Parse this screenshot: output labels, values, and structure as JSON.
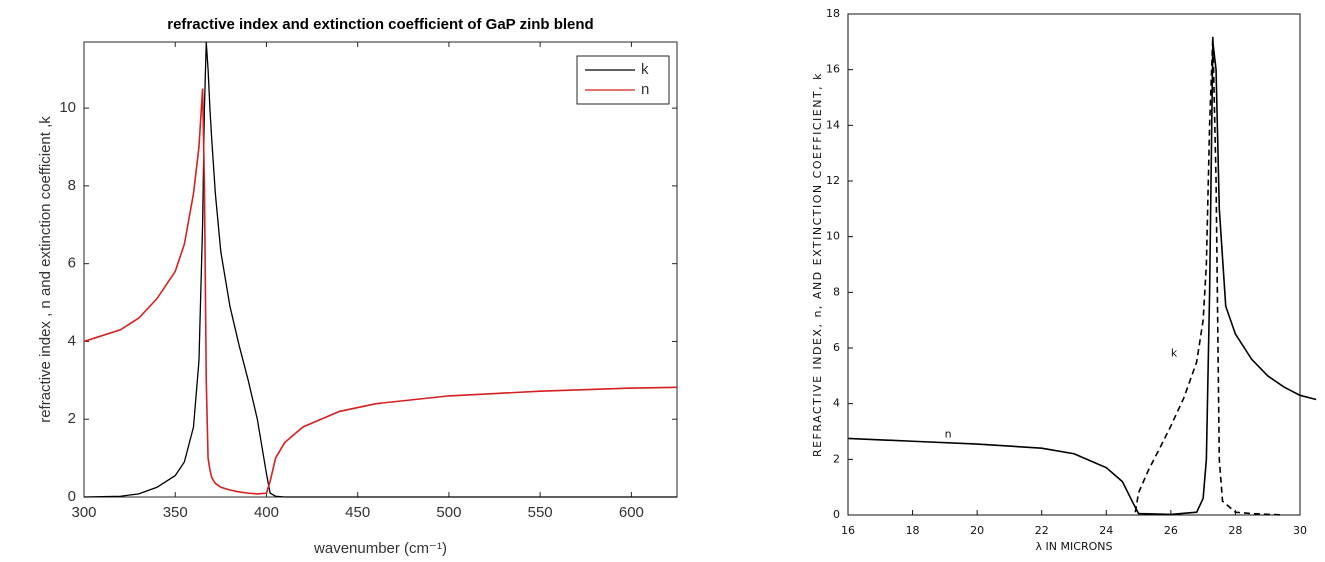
{
  "chart_data": [
    {
      "type": "line",
      "title": "refractive index and extinction coefficient of GaP zinb blend",
      "x_label": "wavenumber (cm⁻¹)",
      "y_label": "refractive index , n and extinction coefficient ,k",
      "xlim": [
        300,
        625
      ],
      "ylim": [
        0,
        11.7
      ],
      "xticks": [
        300,
        350,
        400,
        450,
        500,
        550,
        600
      ],
      "yticks": [
        0,
        2,
        4,
        6,
        8,
        10
      ],
      "legend": "upper right",
      "x": [
        300,
        320,
        330,
        340,
        350,
        355,
        360,
        363,
        365,
        366,
        367,
        368,
        369,
        370,
        372,
        375,
        380,
        385,
        390,
        395,
        400,
        402,
        405,
        410,
        420,
        440,
        460,
        500,
        550,
        600,
        625
      ],
      "series": [
        {
          "name": "k",
          "color": "#000000",
          "dash": "solid",
          "values": [
            0,
            0.02,
            0.08,
            0.25,
            0.55,
            0.9,
            1.8,
            3.5,
            7,
            10,
            11.7,
            11,
            10,
            9.2,
            7.8,
            6.3,
            4.9,
            3.9,
            3.0,
            2.0,
            0.6,
            0.1,
            0.02,
            0,
            0,
            0,
            0,
            0,
            0,
            0,
            0
          ]
        },
        {
          "name": "n",
          "color": "#d42020",
          "dash": "solid",
          "values": [
            4.0,
            4.3,
            4.6,
            5.1,
            5.8,
            6.5,
            7.8,
            9.0,
            10.5,
            8.0,
            3.0,
            1.0,
            0.7,
            0.5,
            0.35,
            0.25,
            0.18,
            0.13,
            0.1,
            0.08,
            0.1,
            0.4,
            1.0,
            1.4,
            1.8,
            2.2,
            2.4,
            2.6,
            2.72,
            2.8,
            2.82
          ]
        }
      ]
    },
    {
      "type": "line",
      "x_label": "λ IN MICRONS",
      "y_label": "REFRACTIVE INDEX, n, AND EXTINCTION COEFFICIENT, k",
      "xlim": [
        16,
        30
      ],
      "ylim": [
        0,
        18
      ],
      "xticks": [
        16,
        18,
        20,
        22,
        24,
        26,
        28,
        30
      ],
      "yticks": [
        0,
        2,
        4,
        6,
        8,
        10,
        12,
        14,
        16,
        18
      ],
      "series": [
        {
          "name": "n",
          "color": "#000000",
          "dash": "solid",
          "x": [
            16,
            18,
            20,
            22,
            23,
            24,
            24.5,
            24.8,
            25,
            26,
            26.8,
            27,
            27.1,
            27.2,
            27.3,
            27.4,
            27.5,
            27.7,
            28,
            28.5,
            29,
            29.5,
            30,
            30.5
          ],
          "values": [
            2.75,
            2.65,
            2.55,
            2.4,
            2.2,
            1.7,
            1.2,
            0.5,
            0.05,
            0.02,
            0.1,
            0.6,
            2,
            8,
            17,
            16,
            11,
            7.5,
            6.5,
            5.6,
            5,
            4.6,
            4.3,
            4.15
          ]
        },
        {
          "name": "k",
          "color": "#000000",
          "dash": "dashed",
          "x": [
            24.9,
            25,
            25.3,
            25.7,
            26,
            26.4,
            26.8,
            27,
            27.1,
            27.2,
            27.3,
            27.4,
            27.5,
            27.6,
            28,
            28.5,
            29.5
          ],
          "values": [
            0.1,
            0.8,
            1.6,
            2.5,
            3.2,
            4.2,
            5.5,
            7,
            9,
            14,
            17.2,
            12,
            2,
            0.5,
            0.1,
            0.05,
            0
          ]
        }
      ],
      "annotations": [
        {
          "text": "n",
          "x": 19.1,
          "y": 2.9
        },
        {
          "text": "k",
          "x": 26.1,
          "y": 5.8
        }
      ]
    }
  ]
}
